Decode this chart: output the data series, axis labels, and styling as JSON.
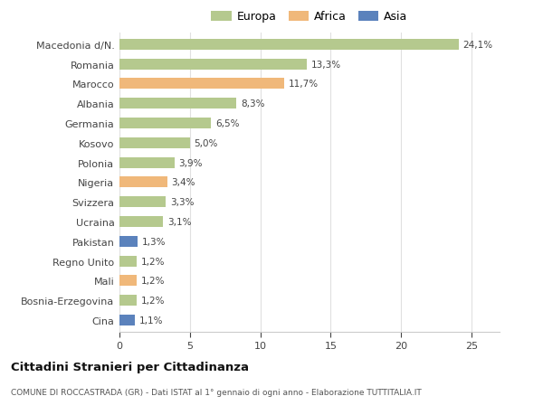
{
  "categories": [
    "Macedonia d/N.",
    "Romania",
    "Marocco",
    "Albania",
    "Germania",
    "Kosovo",
    "Polonia",
    "Nigeria",
    "Svizzera",
    "Ucraina",
    "Pakistan",
    "Regno Unito",
    "Mali",
    "Bosnia-Erzegovina",
    "Cina"
  ],
  "values": [
    24.1,
    13.3,
    11.7,
    8.3,
    6.5,
    5.0,
    3.9,
    3.4,
    3.3,
    3.1,
    1.3,
    1.2,
    1.2,
    1.2,
    1.1
  ],
  "labels": [
    "24,1%",
    "13,3%",
    "11,7%",
    "8,3%",
    "6,5%",
    "5,0%",
    "3,9%",
    "3,4%",
    "3,3%",
    "3,1%",
    "1,3%",
    "1,2%",
    "1,2%",
    "1,2%",
    "1,1%"
  ],
  "continents": [
    "Europa",
    "Europa",
    "Africa",
    "Europa",
    "Europa",
    "Europa",
    "Europa",
    "Africa",
    "Europa",
    "Europa",
    "Asia",
    "Europa",
    "Africa",
    "Europa",
    "Asia"
  ],
  "colors": {
    "Europa": "#b5c98e",
    "Africa": "#f0b87a",
    "Asia": "#5b82bc"
  },
  "legend": [
    {
      "label": "Europa",
      "color": "#b5c98e"
    },
    {
      "label": "Africa",
      "color": "#f0b87a"
    },
    {
      "label": "Asia",
      "color": "#5b82bc"
    }
  ],
  "title": "Cittadini Stranieri per Cittadinanza",
  "subtitle": "COMUNE DI ROCCASTRADA (GR) - Dati ISTAT al 1° gennaio di ogni anno - Elaborazione TUTTITALIA.IT",
  "xlim": [
    0,
    27
  ],
  "xticks": [
    0,
    5,
    10,
    15,
    20,
    25
  ],
  "background_color": "#ffffff",
  "grid_color": "#e0e0e0"
}
